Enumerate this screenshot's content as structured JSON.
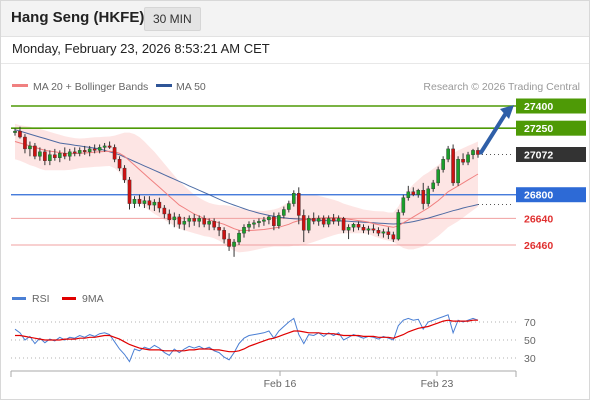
{
  "header": {
    "title": "Hang Seng (HKFE)",
    "timeframe": "30 MIN",
    "datetime": "Monday, February 23, 2026 8:53:21 AM CET"
  },
  "legend": {
    "ma20": {
      "label": "MA 20 + Bollinger Bands",
      "color": "#f08080"
    },
    "ma50": {
      "label": "MA 50",
      "color": "#2f5597"
    },
    "copyright": "Research © 2026 Trading Central"
  },
  "rsi_legend": {
    "rsi": {
      "label": "RSI",
      "color": "#4a7fd4"
    },
    "ma9": {
      "label": "9MA",
      "color": "#e00000"
    }
  },
  "levels": [
    {
      "value": 27400,
      "label": "27400",
      "kind": "resistance",
      "color": "#4e9a06"
    },
    {
      "value": 27250,
      "label": "27250",
      "kind": "resistance",
      "color": "#4e9a06"
    },
    {
      "value": 27072,
      "label": "27072",
      "kind": "last",
      "color": "#333333"
    },
    {
      "value": 26800,
      "label": "26800",
      "kind": "pivot",
      "color": "#2d6ad6"
    },
    {
      "value": 26640,
      "label": "26640",
      "kind": "support",
      "color": "#e03030"
    },
    {
      "value": 26460,
      "label": "26460",
      "kind": "support",
      "color": "#e03030"
    }
  ],
  "x_labels": [
    "Feb 16",
    "Feb 23"
  ],
  "rsi_levels": [
    "70",
    "50",
    "30"
  ],
  "chart_data": {
    "type": "candlestick",
    "ylim": [
      26250,
      27500
    ],
    "rsi_ylim": [
      10,
      90
    ],
    "candles": [
      [
        27220,
        27250,
        27200,
        27230
      ],
      [
        27230,
        27260,
        27180,
        27190
      ],
      [
        27190,
        27210,
        27080,
        27110
      ],
      [
        27110,
        27160,
        27060,
        27130
      ],
      [
        27130,
        27150,
        27040,
        27060
      ],
      [
        27060,
        27120,
        27030,
        27090
      ],
      [
        27090,
        27110,
        27000,
        27030
      ],
      [
        27030,
        27100,
        27000,
        27070
      ],
      [
        27070,
        27110,
        27030,
        27050
      ],
      [
        27050,
        27100,
        27020,
        27080
      ],
      [
        27080,
        27120,
        27040,
        27060
      ],
      [
        27060,
        27110,
        27030,
        27090
      ],
      [
        27090,
        27120,
        27060,
        27080
      ],
      [
        27080,
        27120,
        27060,
        27100
      ],
      [
        27100,
        27130,
        27070,
        27090
      ],
      [
        27090,
        27130,
        27060,
        27110
      ],
      [
        27110,
        27140,
        27080,
        27100
      ],
      [
        27100,
        27140,
        27080,
        27120
      ],
      [
        27120,
        27150,
        27090,
        27130
      ],
      [
        27130,
        27160,
        27110,
        27120
      ],
      [
        27120,
        27140,
        27020,
        27040
      ],
      [
        27040,
        27060,
        26960,
        26980
      ],
      [
        26980,
        27000,
        26880,
        26900
      ],
      [
        26900,
        26920,
        26700,
        26740
      ],
      [
        26740,
        26790,
        26710,
        26770
      ],
      [
        26770,
        26800,
        26720,
        26740
      ],
      [
        26740,
        26790,
        26710,
        26760
      ],
      [
        26760,
        26790,
        26700,
        26730
      ],
      [
        26730,
        26770,
        26690,
        26750
      ],
      [
        26750,
        26780,
        26680,
        26710
      ],
      [
        26710,
        26730,
        26640,
        26670
      ],
      [
        26670,
        26700,
        26600,
        26630
      ],
      [
        26630,
        26680,
        26580,
        26650
      ],
      [
        26650,
        26670,
        26570,
        26600
      ],
      [
        26600,
        26650,
        26560,
        26620
      ],
      [
        26620,
        26660,
        26580,
        26640
      ],
      [
        26640,
        26670,
        26590,
        26620
      ],
      [
        26620,
        26660,
        26580,
        26640
      ],
      [
        26640,
        26660,
        26580,
        26600
      ],
      [
        26600,
        26640,
        26560,
        26620
      ],
      [
        26620,
        26640,
        26560,
        26580
      ],
      [
        26580,
        26620,
        26520,
        26560
      ],
      [
        26560,
        26580,
        26470,
        26500
      ],
      [
        26500,
        26540,
        26420,
        26450
      ],
      [
        26450,
        26500,
        26380,
        26480
      ],
      [
        26480,
        26560,
        26460,
        26540
      ],
      [
        26540,
        26600,
        26510,
        26580
      ],
      [
        26580,
        26620,
        26550,
        26600
      ],
      [
        26600,
        26630,
        26570,
        26610
      ],
      [
        26610,
        26640,
        26580,
        26620
      ],
      [
        26620,
        26650,
        26590,
        26630
      ],
      [
        26630,
        26660,
        26600,
        26650
      ],
      [
        26650,
        26680,
        26560,
        26590
      ],
      [
        26590,
        26680,
        26570,
        26660
      ],
      [
        26660,
        26720,
        26640,
        26700
      ],
      [
        26700,
        26760,
        26680,
        26740
      ],
      [
        26740,
        26830,
        26720,
        26810
      ],
      [
        26810,
        26850,
        26600,
        26660
      ],
      [
        26660,
        26700,
        26480,
        26560
      ],
      [
        26560,
        26660,
        26540,
        26640
      ],
      [
        26640,
        26680,
        26600,
        26620
      ],
      [
        26620,
        26660,
        26590,
        26640
      ],
      [
        26640,
        26660,
        26580,
        26600
      ],
      [
        26600,
        26660,
        26580,
        26640
      ],
      [
        26640,
        26670,
        26600,
        26620
      ],
      [
        26620,
        26660,
        26590,
        26640
      ],
      [
        26640,
        26650,
        26540,
        26560
      ],
      [
        26560,
        26600,
        26500,
        26580
      ],
      [
        26580,
        26610,
        26550,
        26600
      ],
      [
        26600,
        26620,
        26560,
        26580
      ],
      [
        26580,
        26600,
        26540,
        26560
      ],
      [
        26560,
        26590,
        26530,
        26570
      ],
      [
        26570,
        26600,
        26540,
        26560
      ],
      [
        26560,
        26580,
        26520,
        26540
      ],
      [
        26540,
        26570,
        26510,
        26550
      ],
      [
        26550,
        26580,
        26500,
        26530
      ],
      [
        26530,
        26550,
        26480,
        26500
      ],
      [
        26500,
        26700,
        26490,
        26680
      ],
      [
        26680,
        26800,
        26660,
        26780
      ],
      [
        26780,
        26860,
        26760,
        26820
      ],
      [
        26820,
        26850,
        26790,
        26800
      ],
      [
        26800,
        26840,
        26780,
        26830
      ],
      [
        26830,
        26880,
        26700,
        26740
      ],
      [
        26740,
        26860,
        26720,
        26840
      ],
      [
        26840,
        26900,
        26820,
        26880
      ],
      [
        26880,
        26990,
        26860,
        26970
      ],
      [
        26970,
        27060,
        26950,
        27040
      ],
      [
        27040,
        27130,
        27020,
        27110
      ],
      [
        27110,
        27140,
        26860,
        26880
      ],
      [
        26880,
        27060,
        26860,
        27040
      ],
      [
        27040,
        27080,
        27000,
        27020
      ],
      [
        27020,
        27090,
        27000,
        27070
      ],
      [
        27070,
        27110,
        27040,
        27100
      ],
      [
        27100,
        27120,
        27050,
        27072
      ]
    ],
    "ma20": [
      27160,
      27150,
      27140,
      27130,
      27120,
      27110,
      27100,
      27095,
      27090,
      27085,
      27080,
      27078,
      27078,
      27080,
      27082,
      27085,
      27088,
      27090,
      27092,
      27094,
      27090,
      27080,
      27060,
      27030,
      27000,
      26970,
      26940,
      26910,
      26880,
      26850,
      26820,
      26790,
      26760,
      26730,
      26710,
      26690,
      26670,
      26655,
      26640,
      26630,
      26620,
      26610,
      26600,
      26585,
      26570,
      26560,
      26558,
      26558,
      26560,
      26562,
      26565,
      26570,
      26575,
      26580,
      26590,
      26600,
      26615,
      26625,
      26630,
      26635,
      26640,
      26642,
      26644,
      26645,
      26646,
      26645,
      26640,
      26635,
      26630,
      26625,
      26620,
      26615,
      26605,
      26598,
      26592,
      26585,
      26580,
      26590,
      26610,
      26630,
      26650,
      26670,
      26690,
      26710,
      26735,
      26760,
      26790,
      26820,
      26840,
      26860,
      26880,
      26900,
      26920,
      26940
    ],
    "ma50": [
      27240,
      27230,
      27220,
      27210,
      27200,
      27190,
      27180,
      27170,
      27160,
      27150,
      27145,
      27140,
      27135,
      27130,
      27125,
      27120,
      27115,
      27110,
      27100,
      27090,
      27080,
      27070,
      27055,
      27040,
      27025,
      27010,
      26995,
      26980,
      26965,
      26950,
      26935,
      26920,
      26905,
      26890,
      26875,
      26860,
      26845,
      26830,
      26815,
      26800,
      26785,
      26770,
      26755,
      26742,
      26730,
      26718,
      26706,
      26695,
      26685,
      26676,
      26668,
      26660,
      26654,
      26648,
      26644,
      26640,
      26638,
      26636,
      26634,
      26632,
      26630,
      26628,
      26626,
      26625,
      26624,
      26623,
      26622,
      26620,
      26618,
      26616,
      26614,
      26612,
      26610,
      26608,
      26606,
      26604,
      26602,
      26604,
      26608,
      26612,
      26618,
      26626,
      26634,
      26642,
      26652,
      26662,
      26672,
      26682,
      26692,
      26700,
      26710,
      26718,
      26726,
      26734
    ],
    "bb_width": [
      120,
      120,
      125,
      130,
      130,
      135,
      135,
      130,
      125,
      120,
      115,
      110,
      105,
      100,
      100,
      100,
      100,
      100,
      100,
      100,
      110,
      130,
      160,
      190,
      210,
      220,
      220,
      215,
      210,
      200,
      190,
      180,
      170,
      160,
      150,
      140,
      130,
      125,
      120,
      115,
      115,
      120,
      130,
      140,
      150,
      150,
      145,
      140,
      135,
      130,
      125,
      125,
      125,
      130,
      140,
      150,
      160,
      170,
      170,
      165,
      160,
      150,
      140,
      130,
      120,
      110,
      100,
      95,
      90,
      85,
      80,
      80,
      85,
      90,
      95,
      95,
      100,
      130,
      170,
      200,
      220,
      230,
      240,
      240,
      240,
      240,
      240,
      240,
      240,
      240,
      235,
      230,
      225,
      220
    ],
    "rsi": [
      62,
      58,
      50,
      54,
      46,
      52,
      47,
      51,
      49,
      53,
      50,
      53,
      52,
      55,
      53,
      56,
      54,
      57,
      58,
      56,
      48,
      40,
      34,
      26,
      40,
      38,
      42,
      40,
      44,
      41,
      36,
      33,
      40,
      36,
      40,
      43,
      41,
      43,
      40,
      42,
      38,
      36,
      31,
      28,
      36,
      46,
      52,
      55,
      56,
      57,
      58,
      60,
      52,
      60,
      65,
      70,
      74,
      56,
      46,
      56,
      55,
      58,
      54,
      58,
      55,
      58,
      50,
      53,
      56,
      54,
      52,
      54,
      53,
      51,
      54,
      52,
      50,
      66,
      72,
      74,
      72,
      73,
      62,
      70,
      72,
      74,
      76,
      78,
      58,
      72,
      70,
      72,
      74,
      72
    ],
    "rsi_ma9": [
      55,
      55,
      54,
      53,
      52,
      51,
      50,
      50,
      50,
      50,
      51,
      51,
      51,
      52,
      52,
      53,
      53,
      54,
      55,
      55,
      53,
      51,
      48,
      45,
      43,
      41,
      40,
      39,
      39,
      39,
      38,
      38,
      38,
      38,
      38,
      39,
      39,
      40,
      40,
      40,
      39,
      39,
      38,
      37,
      37,
      38,
      40,
      43,
      45,
      47,
      49,
      51,
      52,
      54,
      56,
      58,
      60,
      60,
      59,
      58,
      58,
      58,
      57,
      57,
      57,
      56,
      55,
      55,
      55,
      55,
      54,
      54,
      54,
      53,
      53,
      53,
      52,
      54,
      56,
      59,
      61,
      63,
      64,
      65,
      67,
      69,
      71,
      72,
      71,
      71,
      71,
      71,
      72,
      72
    ]
  }
}
